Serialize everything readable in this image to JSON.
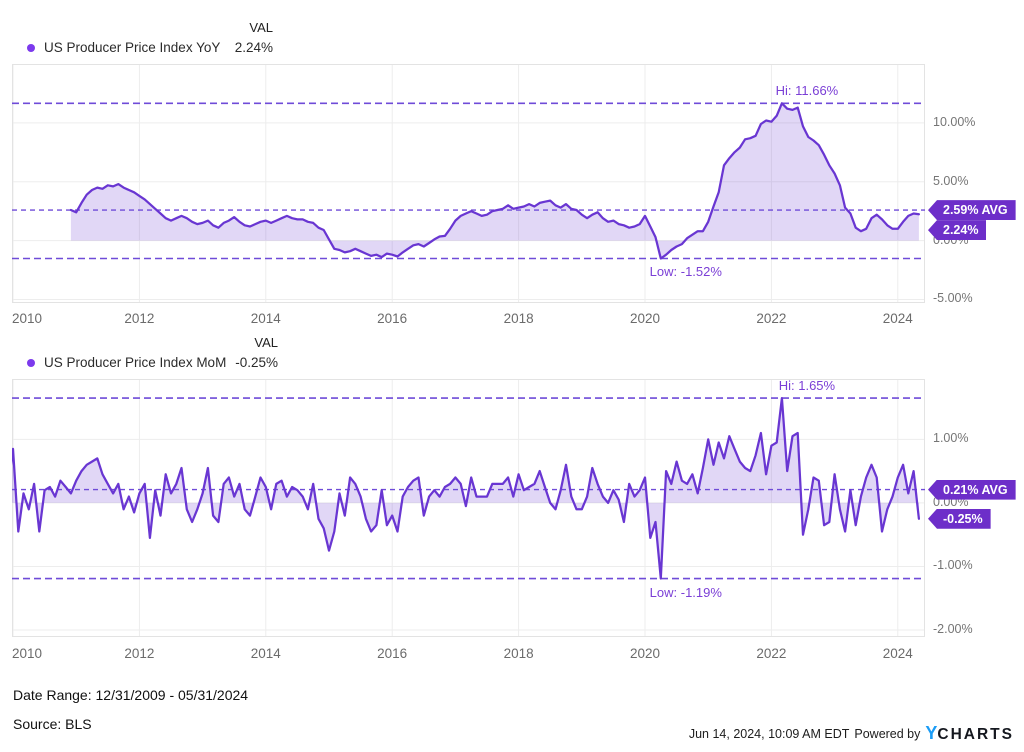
{
  "colors": {
    "line": "#6936d2",
    "fill": "rgba(105,54,210,0.2)",
    "dashed": "#6f4bd8",
    "annotation_text": "#7b3fd6",
    "badge_bg": "#6d2ec9",
    "badge_text": "#ffffff",
    "legend_dot": "#7c3aed",
    "grid": "#ededed",
    "plot_border": "#e3e3e3",
    "logo_y_blue": "#1b9cf6",
    "logo_charts_dark": "#15181f"
  },
  "charts": [
    {
      "val_header": "VAL",
      "legend_label": "US Producer Price Index YoY",
      "val": "2.24%",
      "hi_annotation": "Hi: 11.66%",
      "low_annotation": "Low: -1.52%",
      "avg_badge": "2.59% AVG",
      "current_badge": "2.24%"
    },
    {
      "val_header": "VAL",
      "legend_label": "US Producer Price Index MoM",
      "val": "-0.25%",
      "hi_annotation": "Hi: 1.65%",
      "low_annotation": "Low: -1.19%",
      "avg_badge": "0.21% AVG",
      "current_badge": "-0.25%"
    }
  ],
  "chart_data": [
    {
      "type": "area",
      "series_name": "US Producer Price Index YoY",
      "freq": "monthly",
      "start": "2010-12",
      "end": "2024-05",
      "unit": "%",
      "hi": 11.66,
      "low": -1.52,
      "avg": 2.59,
      "last": 2.24,
      "ylim": [
        -5.3,
        15
      ],
      "yticks": [
        {
          "v": 10,
          "label": "10.00%"
        },
        {
          "v": 5,
          "label": "5.00%"
        },
        {
          "v": 0,
          "label": "0.00%"
        },
        {
          "v": -5,
          "label": "-5.00%"
        }
      ],
      "xticks": [
        {
          "v": 2010,
          "label": "2010"
        },
        {
          "v": 2012,
          "label": "2012"
        },
        {
          "v": 2014,
          "label": "2014"
        },
        {
          "v": 2016,
          "label": "2016"
        },
        {
          "v": 2018,
          "label": "2018"
        },
        {
          "v": 2020,
          "label": "2020"
        },
        {
          "v": 2022,
          "label": "2022"
        },
        {
          "v": 2024,
          "label": "2024"
        }
      ],
      "values": [
        2.6,
        2.4,
        3.2,
        3.9,
        4.3,
        4.5,
        4.4,
        4.7,
        4.6,
        4.8,
        4.5,
        4.3,
        4.1,
        3.8,
        3.5,
        3.1,
        2.7,
        2.3,
        1.9,
        1.7,
        1.9,
        2.1,
        1.9,
        1.6,
        1.4,
        1.5,
        1.7,
        1.3,
        1.1,
        1.5,
        1.7,
        2.0,
        1.6,
        1.3,
        1.2,
        1.4,
        1.6,
        1.7,
        1.5,
        1.7,
        1.9,
        2.1,
        1.9,
        1.8,
        1.8,
        1.6,
        1.5,
        1.1,
        0.9,
        0.1,
        -0.7,
        -0.8,
        -1.0,
        -0.9,
        -0.7,
        -0.9,
        -1.1,
        -1.3,
        -1.2,
        -1.4,
        -1.1,
        -1.2,
        -1.35,
        -1.0,
        -0.7,
        -0.4,
        -0.3,
        -0.5,
        -0.2,
        0.1,
        0.35,
        0.4,
        1.0,
        1.7,
        2.1,
        2.3,
        2.5,
        2.3,
        2.1,
        2.2,
        2.5,
        2.6,
        2.7,
        3.0,
        2.7,
        2.8,
        2.9,
        3.1,
        2.9,
        3.2,
        3.3,
        3.4,
        3.0,
        2.8,
        3.1,
        2.7,
        2.6,
        2.2,
        1.9,
        2.2,
        2.4,
        1.9,
        1.6,
        1.7,
        1.4,
        1.3,
        1.1,
        1.2,
        1.4,
        2.1,
        1.2,
        0.3,
        -1.52,
        -1.2,
        -0.8,
        -0.5,
        -0.3,
        0.2,
        0.5,
        0.8,
        0.8,
        1.6,
        2.9,
        4.1,
        6.4,
        7.0,
        7.5,
        7.9,
        8.6,
        8.7,
        8.9,
        9.9,
        10.2,
        10.1,
        10.6,
        11.66,
        11.2,
        11.1,
        11.3,
        9.7,
        8.8,
        8.5,
        8.1,
        7.3,
        6.4,
        5.7,
        4.7,
        2.8,
        2.3,
        1.1,
        0.8,
        1.0,
        1.9,
        2.2,
        1.8,
        1.3,
        1.0,
        1.0,
        1.6,
        2.1,
        2.3,
        2.24
      ]
    },
    {
      "type": "area",
      "series_name": "US Producer Price Index MoM",
      "freq": "monthly",
      "start": "2009-12",
      "end": "2024-05",
      "unit": "%",
      "hi": 1.65,
      "low": -1.19,
      "avg": 0.21,
      "last": -0.25,
      "ylim": [
        -2.11,
        1.95
      ],
      "yticks": [
        {
          "v": 1,
          "label": "1.00%"
        },
        {
          "v": 0,
          "label": "0.00%"
        },
        {
          "v": -1,
          "label": "-1.00%"
        },
        {
          "v": -2,
          "label": "-2.00%"
        }
      ],
      "xticks": [
        {
          "v": 2010,
          "label": "2010"
        },
        {
          "v": 2012,
          "label": "2012"
        },
        {
          "v": 2014,
          "label": "2014"
        },
        {
          "v": 2016,
          "label": "2016"
        },
        {
          "v": 2018,
          "label": "2018"
        },
        {
          "v": 2020,
          "label": "2020"
        },
        {
          "v": 2022,
          "label": "2022"
        },
        {
          "v": 2024,
          "label": "2024"
        }
      ],
      "values": [
        0.2,
        0.85,
        -0.45,
        0.15,
        -0.1,
        0.3,
        -0.45,
        0.2,
        0.25,
        0.1,
        0.35,
        0.25,
        0.15,
        0.35,
        0.5,
        0.6,
        0.65,
        0.7,
        0.45,
        0.3,
        0.15,
        0.3,
        -0.1,
        0.1,
        -0.15,
        0.15,
        0.3,
        -0.55,
        0.2,
        -0.2,
        0.45,
        0.15,
        0.3,
        0.55,
        -0.1,
        -0.3,
        -0.1,
        0.15,
        0.55,
        -0.2,
        -0.3,
        0.3,
        0.4,
        0.1,
        0.3,
        -0.1,
        -0.2,
        0.1,
        0.4,
        0.25,
        -0.1,
        0.3,
        0.35,
        0.1,
        0.25,
        0.2,
        0.1,
        -0.1,
        0.3,
        -0.25,
        -0.4,
        -0.75,
        -0.45,
        0.15,
        -0.2,
        0.4,
        0.3,
        0.1,
        -0.25,
        -0.45,
        -0.35,
        0.2,
        -0.35,
        -0.2,
        -0.45,
        0.1,
        0.25,
        0.35,
        0.4,
        -0.2,
        0.1,
        0.2,
        0.1,
        0.25,
        0.3,
        0.4,
        0.3,
        -0.05,
        0.4,
        0.1,
        0.1,
        0.1,
        0.3,
        0.3,
        0.3,
        0.4,
        0.1,
        0.45,
        0.2,
        0.25,
        0.3,
        0.5,
        0.25,
        0.0,
        -0.1,
        0.2,
        0.6,
        0.1,
        -0.1,
        -0.1,
        0.1,
        0.55,
        0.3,
        0.1,
        0.0,
        0.2,
        0.05,
        -0.3,
        0.3,
        0.1,
        0.2,
        0.4,
        -0.55,
        -0.3,
        -1.19,
        0.5,
        0.3,
        0.65,
        0.35,
        0.3,
        0.45,
        0.15,
        0.55,
        1.0,
        0.6,
        0.95,
        0.7,
        1.05,
        0.85,
        0.65,
        0.55,
        0.5,
        0.75,
        1.1,
        0.45,
        0.9,
        0.95,
        1.65,
        0.5,
        1.05,
        1.1,
        -0.5,
        -0.1,
        0.4,
        0.35,
        -0.35,
        -0.3,
        0.45,
        -0.1,
        -0.45,
        0.2,
        -0.35,
        0.1,
        0.4,
        0.6,
        0.4,
        -0.45,
        -0.1,
        0.1,
        0.4,
        0.6,
        0.15,
        0.5,
        -0.25
      ]
    }
  ],
  "footer": {
    "date_range": "Date Range: 12/31/2009 - 05/31/2024",
    "source": "Source: BLS",
    "timestamp": "Jun 14, 2024, 10:09 AM EDT",
    "powered_by": "Powered by",
    "logo_y": "Y",
    "logo_charts": "CHARTS"
  }
}
